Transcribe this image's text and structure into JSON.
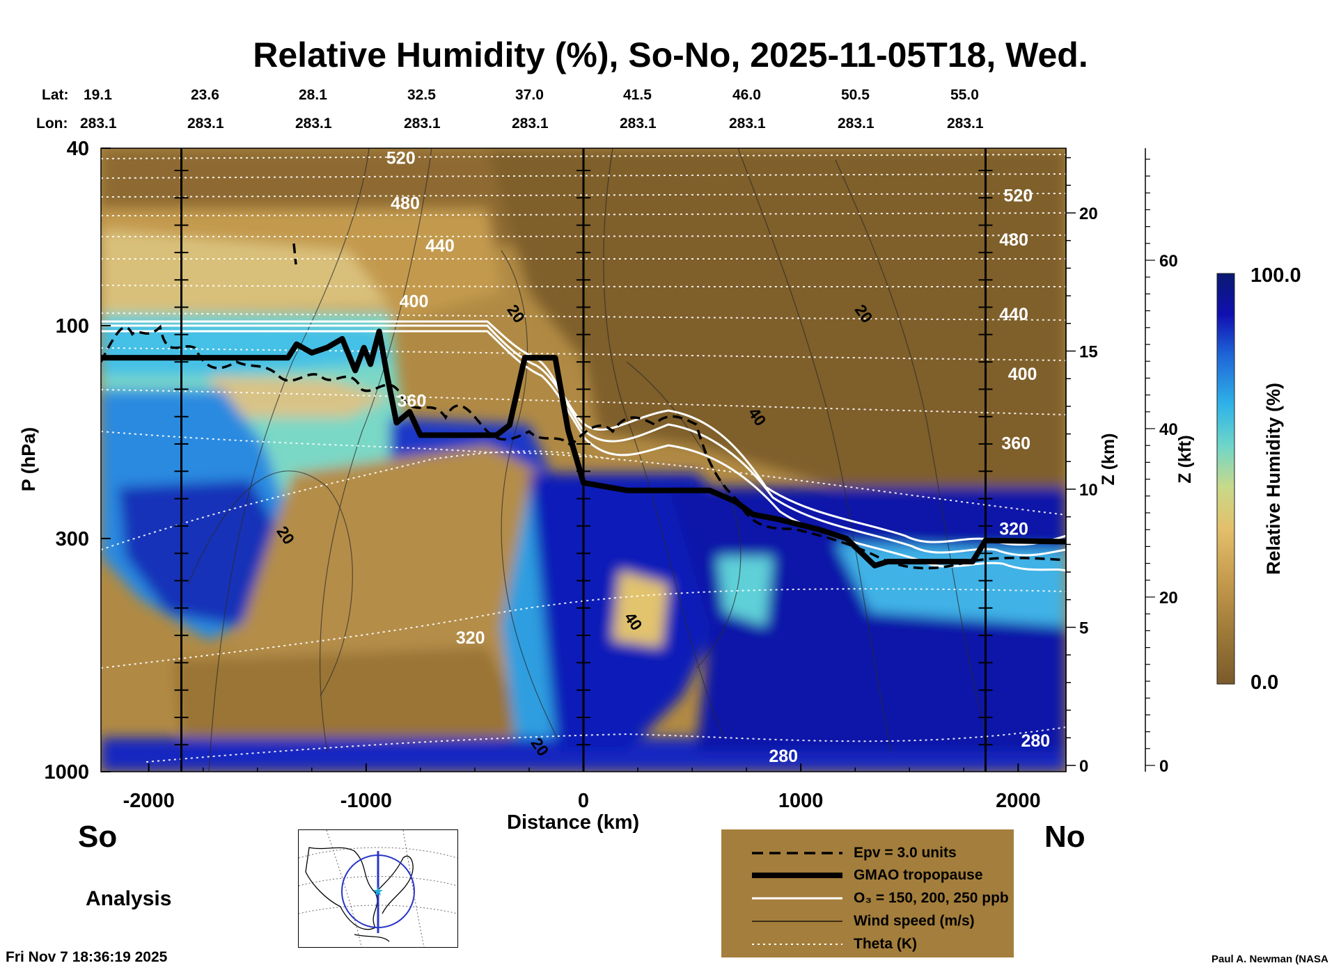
{
  "title": "Relative Humidity (%), So-No, 2025-11-05T18, Wed.",
  "coords": {
    "lat_label": "Lat:",
    "lon_label": "Lon:",
    "lat": [
      "19.1",
      "23.6",
      "28.1",
      "32.5",
      "37.0",
      "41.5",
      "46.0",
      "50.5",
      "55.0"
    ],
    "lon": [
      "283.1",
      "283.1",
      "283.1",
      "283.1",
      "283.1",
      "283.1",
      "283.1",
      "283.1",
      "283.1"
    ]
  },
  "side_labels": {
    "left": "So",
    "right": "No"
  },
  "analysis_label": "Analysis",
  "footer_date": "Fri Nov  7 18:36:19 2025",
  "credit": "Paul A. Newman (NASA",
  "chart_data": {
    "type": "heatmap",
    "title": "Relative Humidity (%), So-No, 2025-11-05T18, Wed.",
    "xlabel": "Distance (km)",
    "ylabel": "P (hPa)",
    "xlim": [
      -2220,
      2220
    ],
    "ylim": [
      1000,
      40
    ],
    "x_ticks": [
      "-2000",
      "-1000",
      "0",
      "1000",
      "2000"
    ],
    "x_tick_values": [
      -2000,
      -1000,
      0,
      1000,
      2000
    ],
    "y_ticks": [
      "40",
      "100",
      "300",
      "1000"
    ],
    "y_tick_values": [
      40,
      100,
      300,
      1000
    ],
    "right_axis_km": {
      "label": "Z (km)",
      "ticks": [
        "0",
        "5",
        "10",
        "15",
        "20"
      ],
      "values": [
        0,
        5,
        10,
        15,
        20
      ]
    },
    "right_axis_kft": {
      "label": "Z (kft)",
      "ticks": [
        "0",
        "20",
        "40",
        "60"
      ],
      "values": [
        0,
        20,
        40,
        60
      ]
    },
    "colorbar": {
      "label": "Relative Humidity (%)",
      "min_label": "0.0",
      "max_label": "100.0",
      "min": 0,
      "max": 100,
      "colors": [
        "#7a5a2b",
        "#9c7838",
        "#c49a4c",
        "#e3c06b",
        "#c8d98a",
        "#6fd6c8",
        "#2fb3e8",
        "#1f66d8",
        "#1010b0",
        "#0a1a70"
      ]
    },
    "vertical_lines_km": [
      -1850,
      0,
      1850
    ],
    "theta_labels": [
      {
        "text": "520",
        "x": -840,
        "p": 42
      },
      {
        "text": "480",
        "x": -820,
        "p": 53
      },
      {
        "text": "440",
        "x": -660,
        "p": 66
      },
      {
        "text": "400",
        "x": -780,
        "p": 88
      },
      {
        "text": "360",
        "x": -790,
        "p": 147
      },
      {
        "text": "320",
        "x": -520,
        "p": 500
      },
      {
        "text": "280",
        "x": 920,
        "p": 920
      },
      {
        "text": "280",
        "x": 2080,
        "p": 850
      },
      {
        "text": "520",
        "x": 2000,
        "p": 51
      },
      {
        "text": "480",
        "x": 1980,
        "p": 64
      },
      {
        "text": "440",
        "x": 1980,
        "p": 94
      },
      {
        "text": "400",
        "x": 2020,
        "p": 128
      },
      {
        "text": "360",
        "x": 1990,
        "p": 183
      },
      {
        "text": "320",
        "x": 1980,
        "p": 285
      }
    ],
    "wind_labels": [
      {
        "text": "20",
        "x": -1370,
        "p": 295
      },
      {
        "text": "20",
        "x": -310,
        "p": 94
      },
      {
        "text": "20",
        "x": 1290,
        "p": 94
      },
      {
        "text": "40",
        "x": 800,
        "p": 160
      },
      {
        "text": "40",
        "x": 230,
        "p": 460
      },
      {
        "text": "20",
        "x": -200,
        "p": 880
      }
    ],
    "tropopause_hPa": [
      [
        -2220,
        118
      ],
      [
        -1360,
        118
      ],
      [
        -1320,
        110
      ],
      [
        -1250,
        115
      ],
      [
        -1180,
        112
      ],
      [
        -1110,
        107
      ],
      [
        -1050,
        126
      ],
      [
        -1010,
        112
      ],
      [
        -980,
        122
      ],
      [
        -940,
        103
      ],
      [
        -900,
        132
      ],
      [
        -860,
        165
      ],
      [
        -800,
        156
      ],
      [
        -750,
        176
      ],
      [
        -400,
        176
      ],
      [
        -340,
        167
      ],
      [
        -270,
        118
      ],
      [
        -130,
        118
      ],
      [
        -70,
        172
      ],
      [
        0,
        225
      ],
      [
        200,
        234
      ],
      [
        580,
        234
      ],
      [
        700,
        248
      ],
      [
        780,
        265
      ],
      [
        900,
        272
      ],
      [
        1080,
        286
      ],
      [
        1210,
        300
      ],
      [
        1340,
        345
      ],
      [
        1400,
        338
      ],
      [
        1540,
        338
      ],
      [
        1790,
        338
      ],
      [
        1850,
        303
      ],
      [
        2220,
        305
      ]
    ],
    "legend": [
      {
        "label": "Epv = 3.0 units",
        "style": "dashed-black"
      },
      {
        "label": "GMAO tropopause",
        "style": "thick-black"
      },
      {
        "label": "O₃ = 150, 200, 250 ppb",
        "style": "white"
      },
      {
        "label": "Wind speed (m/s)",
        "style": "thin-black"
      },
      {
        "label": "Theta (K)",
        "style": "dotted-white"
      }
    ]
  }
}
